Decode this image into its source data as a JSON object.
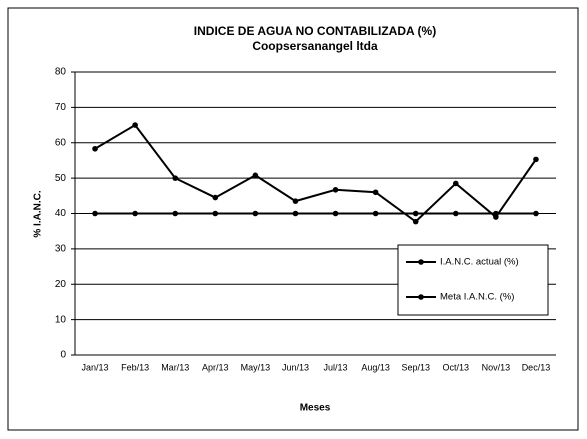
{
  "chart_data": {
    "type": "line",
    "title": "INDICE DE AGUA NO CONTABILIZADA (%)",
    "subtitle": "Coopsersanangel ltda",
    "x_label": "Meses",
    "y_label": "% I.A.N.C.",
    "categories": [
      "Jan/13",
      "Feb/13",
      "Mar/13",
      "Apr/13",
      "May/13",
      "Jun/13",
      "Jul/13",
      "Aug/13",
      "Sep/13",
      "Oct/13",
      "Nov/13",
      "Dec/13"
    ],
    "series": [
      {
        "name": "I.A.N.C. actual (%)",
        "color": "#000000",
        "values": [
          58.3,
          65,
          50,
          44.5,
          50.8,
          43.5,
          46.7,
          46,
          37.7,
          48.5,
          39,
          55.3
        ]
      },
      {
        "name": "Meta I.A.N.C. (%)",
        "color": "#000000",
        "values": [
          40,
          40,
          40,
          40,
          40,
          40,
          40,
          40,
          40,
          40,
          40,
          40
        ]
      }
    ],
    "ylim": [
      0,
      80
    ],
    "yticks": [
      0,
      10,
      20,
      30,
      40,
      50,
      60,
      70,
      80
    ],
    "grid": true,
    "legend": "right"
  }
}
